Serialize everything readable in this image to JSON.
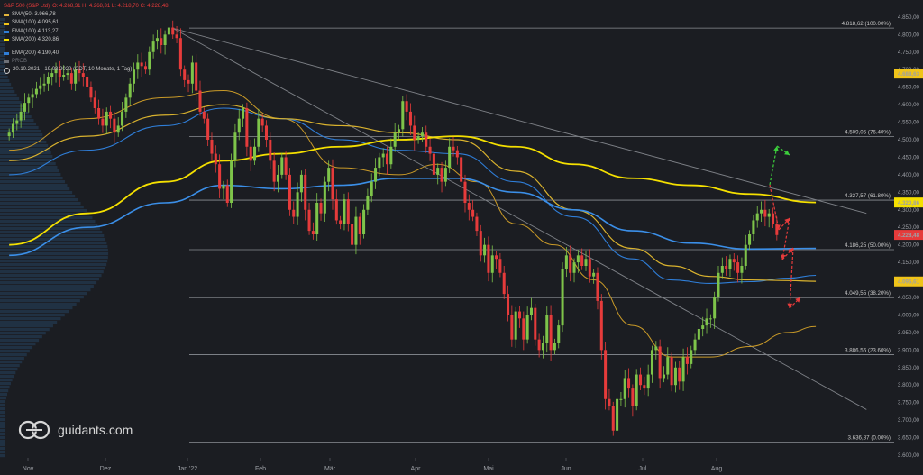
{
  "header": {
    "instrument": "S&P 500 (S&P Ltd)",
    "ohlc": "O: 4.268,31  H: 4.268,31  L: 4.218,70  C: 4.228,48",
    "period": "20.10.2021 - 19.08.2022  (CDT, 10 Monate, 1 Tag)",
    "indicators": [
      {
        "label": "SMA(50)",
        "value": "3.966,78",
        "color": "#e0b43c"
      },
      {
        "label": "SMA(100)",
        "value": "4.095,61",
        "color": "#f0c419"
      },
      {
        "label": "EMA(100)",
        "value": "4.113,27",
        "color": "#2f7ed8"
      },
      {
        "label": "SMA(200)",
        "value": "4.320,86",
        "color": "#f5e000"
      }
    ],
    "indicators2": [
      {
        "label": "EMA(200)",
        "value": "4.190,40",
        "color": "#2f7ed8"
      },
      {
        "label": "PROB",
        "value": "",
        "color": "#6c6f76"
      }
    ]
  },
  "logo": {
    "text": "guidants.com",
    "icon": "guidants-logo-icon"
  },
  "colors": {
    "up": "#7ec44a",
    "down": "#e63b3b",
    "bg": "#1b1d22",
    "grid": "#3a3d43"
  },
  "chart_data": {
    "type": "candlestick",
    "title": "S&P 500",
    "ylim": [
      3600,
      4860
    ],
    "y_ticks": [
      "3.600,00",
      "3.650,00",
      "3.700,00",
      "3.750,00",
      "3.800,00",
      "3.850,00",
      "3.900,00",
      "3.950,00",
      "4.000,00",
      "4.050,00",
      "4.100,00",
      "4.150,00",
      "4.200,00",
      "4.250,00",
      "4.300,00",
      "4.350,00",
      "4.400,00",
      "4.450,00",
      "4.500,00",
      "4.550,00",
      "4.600,00",
      "4.650,00",
      "4.700,00",
      "4.750,00",
      "4.800,00",
      "4.850,00"
    ],
    "x_labels": [
      "Nov",
      "Dez",
      "Jan '22",
      "Feb",
      "Mär",
      "Apr",
      "Mai",
      "Jun",
      "Jul",
      "Aug"
    ],
    "fibonacci": [
      {
        "level": 4818.62,
        "label": "4.818,62 (100.00%)"
      },
      {
        "level": 4509.05,
        "label": "4.509,05 (76.40%)"
      },
      {
        "level": 4327.57,
        "label": "4.327,57 (61.80%)"
      },
      {
        "level": 4186.25,
        "label": "4.186,25 (50.00%)"
      },
      {
        "level": 4049.55,
        "label": "4.049,55 (38.20%)"
      },
      {
        "level": 3886.56,
        "label": "3.886,56 (23.60%)"
      },
      {
        "level": 3636.87,
        "label": "3.636,87 (0.00%)"
      }
    ],
    "price_tags": [
      {
        "value": 4688.63,
        "label": "4.688,63",
        "color": "#f0c419"
      },
      {
        "value": 4320.86,
        "label": "4.320,86",
        "color": "#f5e000"
      },
      {
        "value": 4228.48,
        "label": "4.228,48",
        "color": "#e63b3b"
      },
      {
        "value": 4095.61,
        "label": "4.095,61",
        "color": "#f0c419"
      }
    ],
    "closes": [
      4520,
      4545,
      4555,
      4580,
      4605,
      4620,
      4630,
      4645,
      4655,
      4660,
      4680,
      4690,
      4700,
      4680,
      4685,
      4690,
      4660,
      4700,
      4690,
      4680,
      4650,
      4620,
      4590,
      4560,
      4540,
      4580,
      4560,
      4520,
      4540,
      4580,
      4620,
      4660,
      4700,
      4720,
      4710,
      4700,
      4750,
      4780,
      4790,
      4770,
      4800,
      4820,
      4800,
      4790,
      4700,
      4670,
      4660,
      4720,
      4640,
      4580,
      4560,
      4500,
      4460,
      4430,
      4360,
      4370,
      4320,
      4440,
      4520,
      4560,
      4590,
      4480,
      4440,
      4480,
      4560,
      4540,
      4500,
      4440,
      4380,
      4400,
      4450,
      4400,
      4300,
      4280,
      4350,
      4400,
      4300,
      4240,
      4230,
      4320,
      4290,
      4380,
      4420,
      4330,
      4270,
      4260,
      4330,
      4260,
      4200,
      4280,
      4230,
      4300,
      4340,
      4380,
      4420,
      4450,
      4460,
      4430,
      4480,
      4520,
      4530,
      4610,
      4580,
      4540,
      4500,
      4510,
      4520,
      4480,
      4460,
      4400,
      4420,
      4380,
      4420,
      4480,
      4470,
      4450,
      4380,
      4320,
      4300,
      4280,
      4240,
      4170,
      4200,
      4120,
      4170,
      4160,
      4120,
      4060,
      4000,
      3930,
      4010,
      3990,
      3930,
      4000,
      4020,
      3930,
      3900,
      3920,
      4000,
      3900,
      3920,
      3970,
      4130,
      4170,
      4120,
      4150,
      4170,
      4140,
      4160,
      4110,
      4120,
      4040,
      3900,
      3760,
      3740,
      3670,
      3760,
      3760,
      3820,
      3790,
      3740,
      3830,
      3800,
      3790,
      3830,
      3900,
      3910,
      3820,
      3830,
      3880,
      3800,
      3850,
      3810,
      3880,
      3860,
      3900,
      3930,
      3960,
      3970,
      3990,
      3990,
      4050,
      4120,
      4140,
      4130,
      4160,
      4150,
      4120,
      4140,
      4200,
      4230,
      4270,
      4290,
      4300,
      4280,
      4290,
      4260,
      4228
    ],
    "sma50_points": [
      [
        0,
        4470
      ],
      [
        20,
        4560
      ],
      [
        40,
        4620
      ],
      [
        55,
        4640
      ],
      [
        70,
        4560
      ],
      [
        85,
        4420
      ],
      [
        100,
        4400
      ],
      [
        110,
        4430
      ],
      [
        120,
        4380
      ],
      [
        130,
        4260
      ],
      [
        140,
        4200
      ],
      [
        150,
        4100
      ],
      [
        160,
        3970
      ],
      [
        170,
        3880
      ],
      [
        180,
        3880
      ],
      [
        190,
        3910
      ],
      [
        200,
        3950
      ],
      [
        207,
        3967
      ]
    ],
    "sma100_points": [
      [
        0,
        4440
      ],
      [
        20,
        4510
      ],
      [
        40,
        4570
      ],
      [
        55,
        4600
      ],
      [
        70,
        4560
      ],
      [
        85,
        4540
      ],
      [
        100,
        4520
      ],
      [
        115,
        4500
      ],
      [
        130,
        4410
      ],
      [
        145,
        4300
      ],
      [
        160,
        4190
      ],
      [
        170,
        4140
      ],
      [
        180,
        4110
      ],
      [
        190,
        4100
      ],
      [
        200,
        4098
      ],
      [
        207,
        4096
      ]
    ],
    "ema100_points": [
      [
        0,
        4400
      ],
      [
        20,
        4470
      ],
      [
        40,
        4540
      ],
      [
        55,
        4590
      ],
      [
        70,
        4560
      ],
      [
        85,
        4500
      ],
      [
        100,
        4470
      ],
      [
        115,
        4460
      ],
      [
        130,
        4380
      ],
      [
        145,
        4280
      ],
      [
        160,
        4160
      ],
      [
        170,
        4100
      ],
      [
        180,
        4090
      ],
      [
        190,
        4095
      ],
      [
        200,
        4105
      ],
      [
        207,
        4113
      ]
    ],
    "sma200_points": [
      [
        0,
        4200
      ],
      [
        20,
        4290
      ],
      [
        40,
        4380
      ],
      [
        55,
        4440
      ],
      [
        70,
        4460
      ],
      [
        85,
        4480
      ],
      [
        100,
        4500
      ],
      [
        115,
        4510
      ],
      [
        130,
        4480
      ],
      [
        145,
        4430
      ],
      [
        160,
        4390
      ],
      [
        175,
        4370
      ],
      [
        190,
        4345
      ],
      [
        207,
        4321
      ]
    ],
    "ema200_points": [
      [
        0,
        4170
      ],
      [
        20,
        4250
      ],
      [
        40,
        4320
      ],
      [
        55,
        4370
      ],
      [
        70,
        4360
      ],
      [
        85,
        4370
      ],
      [
        100,
        4390
      ],
      [
        115,
        4390
      ],
      [
        130,
        4350
      ],
      [
        145,
        4300
      ],
      [
        160,
        4240
      ],
      [
        175,
        4205
      ],
      [
        190,
        4188
      ],
      [
        207,
        4190
      ]
    ],
    "trendlines": [
      {
        "from": [
          42,
          4818
        ],
        "to": [
          220,
          3730
        ]
      },
      {
        "from": [
          42,
          4818
        ],
        "to": [
          220,
          4290
        ]
      }
    ]
  }
}
